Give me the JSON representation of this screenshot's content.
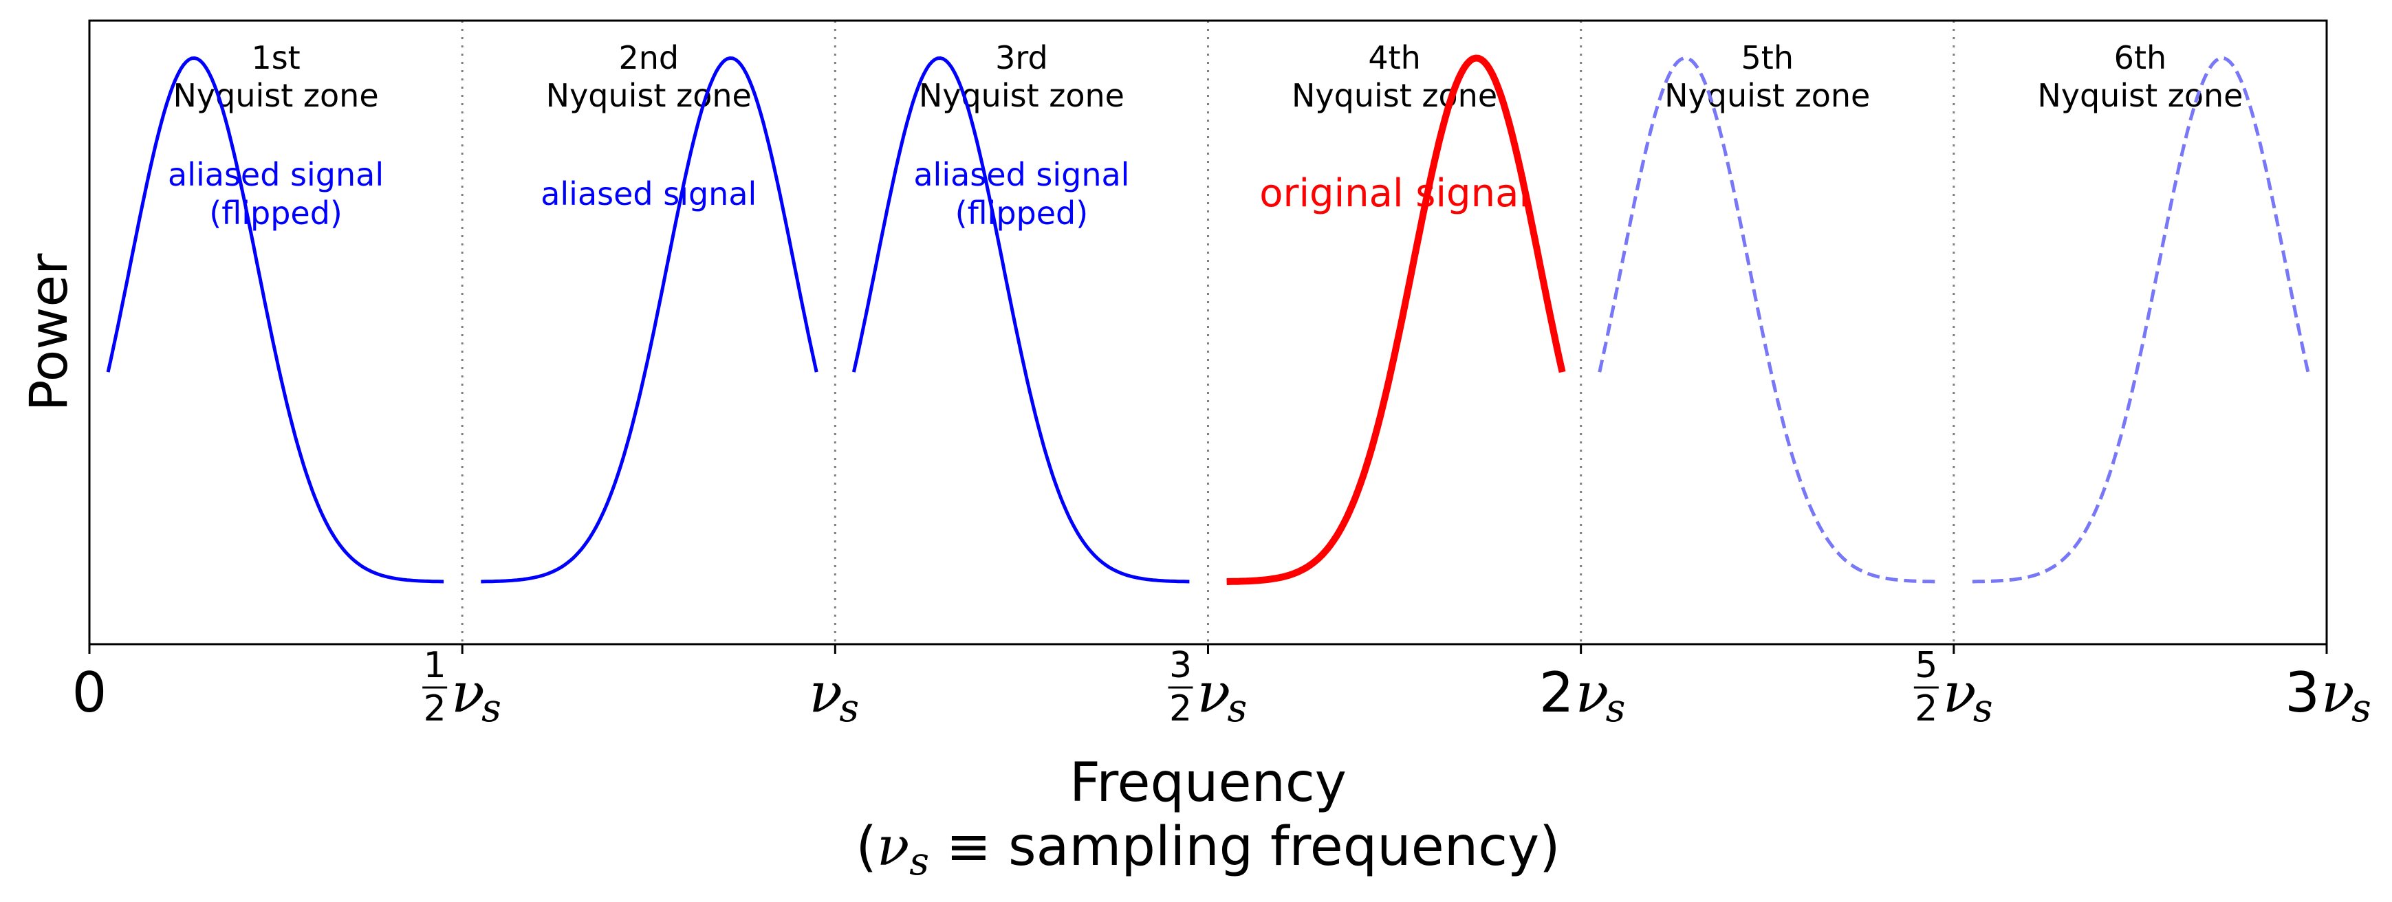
{
  "chart_data": {
    "type": "line",
    "title": "",
    "xlabel": "Frequency",
    "xlabel_note": "(νs ≡  sampling frequency)",
    "ylabel": "Power",
    "xlim": [
      0,
      3
    ],
    "ylim": [
      0,
      1
    ],
    "grid": false,
    "x_ticks": [
      {
        "value": 0,
        "label": "0"
      },
      {
        "value": 0.5,
        "label": "½νs"
      },
      {
        "value": 1,
        "label": "νs"
      },
      {
        "value": 1.5,
        "label": "3/2 νs"
      },
      {
        "value": 2,
        "label": "2νs"
      },
      {
        "value": 2.5,
        "label": "5/2 νs"
      },
      {
        "value": 3,
        "label": "3νs"
      }
    ],
    "zones": [
      {
        "ordinal": "1st",
        "name": "Nyquist zone",
        "range": [
          0,
          0.5
        ],
        "annotation": [
          "aliased signal",
          "(flipped)"
        ],
        "annotation_color": "#0000ff"
      },
      {
        "ordinal": "2nd",
        "name": "Nyquist zone",
        "range": [
          0.5,
          1
        ],
        "annotation": [
          "aliased signal"
        ],
        "annotation_color": "#0000ff"
      },
      {
        "ordinal": "3rd",
        "name": "Nyquist zone",
        "range": [
          1,
          1.5
        ],
        "annotation": [
          "aliased signal",
          "(flipped)"
        ],
        "annotation_color": "#0000ff"
      },
      {
        "ordinal": "4th",
        "name": "Nyquist zone",
        "range": [
          1.5,
          2
        ],
        "annotation": [
          "original signal"
        ],
        "annotation_color": "#ff0000"
      },
      {
        "ordinal": "5th",
        "name": "Nyquist zone",
        "range": [
          2,
          2.5
        ],
        "annotation": [],
        "annotation_color": "#0000ff"
      },
      {
        "ordinal": "6th",
        "name": "Nyquist zone",
        "range": [
          2.5,
          3
        ],
        "annotation": [],
        "annotation_color": "#0000ff"
      }
    ],
    "series": [
      {
        "zone": 1,
        "x_range": [
          0.025,
          0.475
        ],
        "flipped": true,
        "color": "#0000ff",
        "style": "solid",
        "weight": "normal"
      },
      {
        "zone": 2,
        "x_range": [
          0.525,
          0.975
        ],
        "flipped": false,
        "color": "#0000ff",
        "style": "solid",
        "weight": "normal"
      },
      {
        "zone": 3,
        "x_range": [
          1.025,
          1.475
        ],
        "flipped": true,
        "color": "#0000ff",
        "style": "solid",
        "weight": "normal"
      },
      {
        "zone": 4,
        "x_range": [
          1.525,
          1.975
        ],
        "flipped": false,
        "color": "#ff0000",
        "style": "solid",
        "weight": "bold"
      },
      {
        "zone": 5,
        "x_range": [
          2.025,
          2.475
        ],
        "flipped": true,
        "color": "#7777f7",
        "style": "dashed",
        "weight": "normal"
      },
      {
        "zone": 6,
        "x_range": [
          2.525,
          2.975
        ],
        "flipped": false,
        "color": "#7777f7",
        "style": "dashed",
        "weight": "normal"
      }
    ],
    "curve_shape": {
      "peak_x_fraction": 0.72,
      "peak_y": 0.94,
      "base_y": 0.1,
      "width": 0.17,
      "end_y": 0.45
    }
  }
}
